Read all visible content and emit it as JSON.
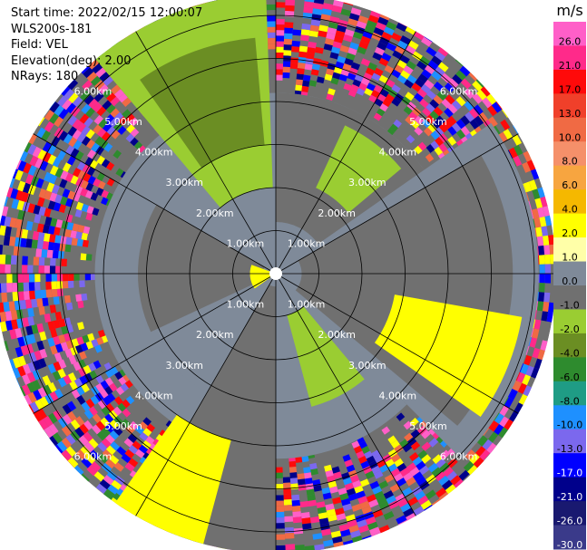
{
  "meta": {
    "start_time": "Start time: 2022/02/15 12:00:07",
    "instrument": "WLS200s-181",
    "field": "Field: VEL",
    "elevation": "Elevation(deg): 2.00",
    "nrays": "NRays: 180"
  },
  "chart_data": {
    "type": "heatmap",
    "projection": "polar PPI",
    "title": "",
    "range_rings_km": [
      1,
      2,
      3,
      4,
      5,
      6
    ],
    "range_ring_labels": [
      "1.00km",
      "2.00km",
      "3.00km",
      "4.00km",
      "5.00km",
      "6.00km"
    ],
    "max_range_km": 6.5,
    "spokes_deg": [
      0,
      30,
      60,
      90,
      120,
      150,
      180,
      210,
      240,
      270,
      300,
      330
    ],
    "colorbar": {
      "unit": "m/s",
      "tick_labels": [
        "26.0",
        "21.0",
        "17.0",
        "13.0",
        "10.0",
        "8.0",
        "6.0",
        "4.0",
        "2.0",
        "1.0",
        "0.0",
        "-1.0",
        "-2.0",
        "-4.0",
        "-6.0",
        "-8.0",
        "-10.0",
        "-13.0",
        "-17.0",
        "-21.0",
        "-26.0",
        "-30.0"
      ],
      "bands": [
        {
          "from": 26,
          "to": 30,
          "color": "#ff5fc8"
        },
        {
          "from": 21,
          "to": 26,
          "color": "#ff2a8a"
        },
        {
          "from": 17,
          "to": 21,
          "color": "#ff0a0a"
        },
        {
          "from": 13,
          "to": 17,
          "color": "#f0402a"
        },
        {
          "from": 10,
          "to": 13,
          "color": "#f06a44"
        },
        {
          "from": 8,
          "to": 10,
          "color": "#f5906a"
        },
        {
          "from": 6,
          "to": 8,
          "color": "#f7a540"
        },
        {
          "from": 4,
          "to": 6,
          "color": "#f5b800"
        },
        {
          "from": 2,
          "to": 4,
          "color": "#ffff00"
        },
        {
          "from": 1,
          "to": 2,
          "color": "#ffffa8"
        },
        {
          "from": 0,
          "to": 1,
          "color": "#7f8a99"
        },
        {
          "from": -1,
          "to": 0,
          "color": "#707070"
        },
        {
          "from": -2,
          "to": -1,
          "color": "#9acd32"
        },
        {
          "from": -4,
          "to": -2,
          "color": "#6b8e23"
        },
        {
          "from": -6,
          "to": -4,
          "color": "#2e8b2e"
        },
        {
          "from": -8,
          "to": -6,
          "color": "#1f9c85"
        },
        {
          "from": -10,
          "to": -8,
          "color": "#1e90ff"
        },
        {
          "from": -13,
          "to": -10,
          "color": "#7b68ee"
        },
        {
          "from": -17,
          "to": -13,
          "color": "#0000ff"
        },
        {
          "from": -21,
          "to": -17,
          "color": "#00008b"
        },
        {
          "from": -26,
          "to": -21,
          "color": "#191970"
        },
        {
          "from": -30,
          "to": -26,
          "color": "#3a3a8a"
        }
      ]
    },
    "velocity_regions": [
      {
        "az_from": 0,
        "az_to": 55,
        "r_from": 1.2,
        "r_to": 4.2,
        "color": "#707070"
      },
      {
        "az_from": 25,
        "az_to": 50,
        "r_from": 2.2,
        "r_to": 3.8,
        "color": "#9acd32"
      },
      {
        "az_from": 55,
        "az_to": 135,
        "r_from": 0.6,
        "r_to": 6.1,
        "color": "#7f8a99"
      },
      {
        "az_from": 60,
        "az_to": 130,
        "r_from": 0.6,
        "r_to": 5.5,
        "color": "#707070"
      },
      {
        "az_from": 100,
        "az_to": 125,
        "r_from": 2.8,
        "r_to": 5.8,
        "color": "#ffff00"
      },
      {
        "az_from": 135,
        "az_to": 180,
        "r_from": 0.4,
        "r_to": 4.3,
        "color": "#7f8a99"
      },
      {
        "az_from": 140,
        "az_to": 165,
        "r_from": 1.0,
        "r_to": 3.2,
        "color": "#9acd32"
      },
      {
        "az_from": 180,
        "az_to": 210,
        "r_from": 0.3,
        "r_to": 6.6,
        "color": "#707070"
      },
      {
        "az_from": 195,
        "az_to": 215,
        "r_from": 4.0,
        "r_to": 6.6,
        "color": "#ffff00"
      },
      {
        "az_from": 210,
        "az_to": 245,
        "r_from": 0.4,
        "r_to": 3.2,
        "color": "#7f8a99"
      },
      {
        "az_from": 245,
        "az_to": 300,
        "r_from": 0.3,
        "r_to": 3.2,
        "color": "#707070"
      },
      {
        "az_from": 235,
        "az_to": 290,
        "r_from": 0.0,
        "r_to": 0.6,
        "color": "#ffff00"
      },
      {
        "az_from": 300,
        "az_to": 360,
        "r_from": 0.5,
        "r_to": 3.0,
        "color": "#7f8a99"
      },
      {
        "az_from": 320,
        "az_to": 358,
        "r_from": 2.0,
        "r_to": 6.5,
        "color": "#9acd32"
      },
      {
        "az_from": 325,
        "az_to": 355,
        "r_from": 3.0,
        "r_to": 5.5,
        "color": "#6b8e23"
      }
    ]
  }
}
